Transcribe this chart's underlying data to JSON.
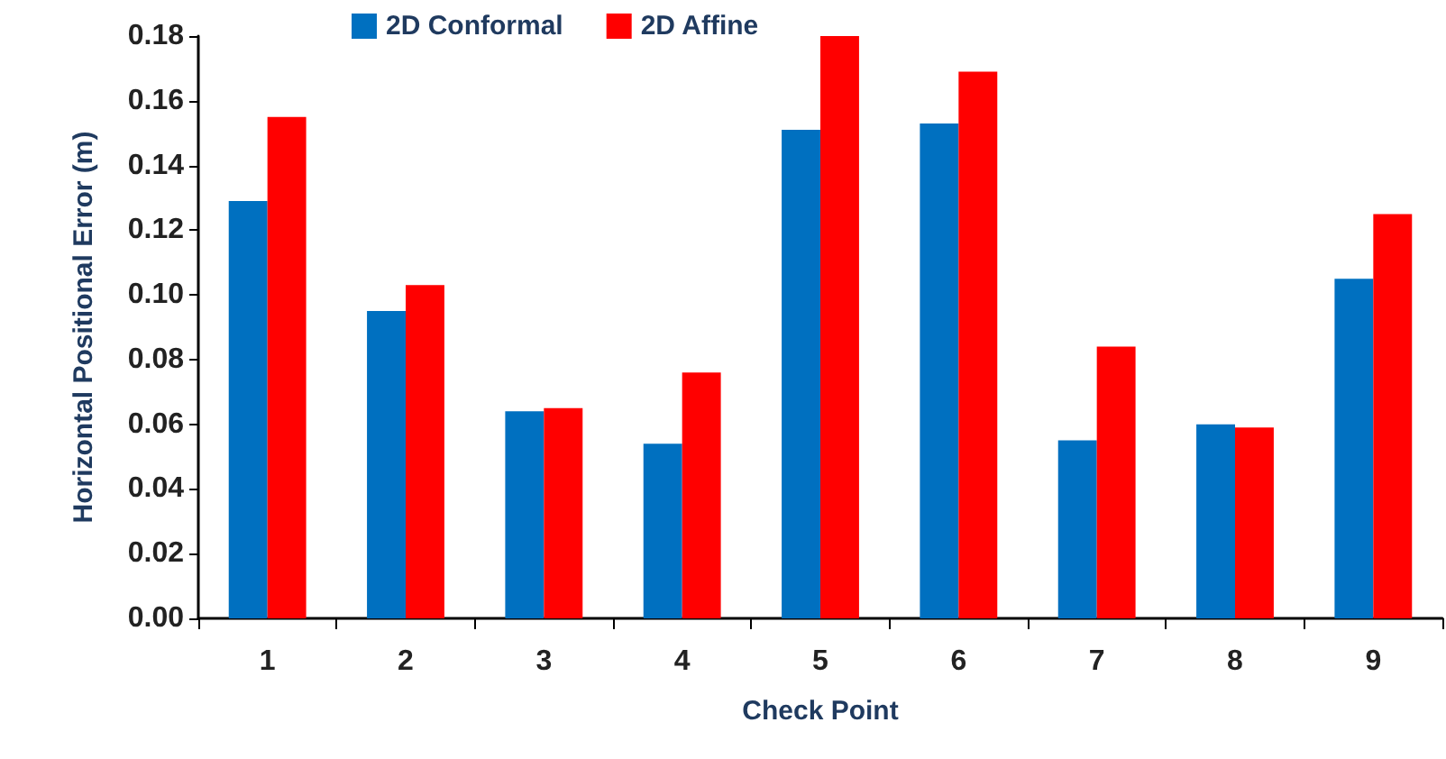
{
  "chart_data": {
    "type": "bar",
    "xlabel": "Check Point",
    "ylabel": "Horizontal Positional Error (m)",
    "categories": [
      "1",
      "2",
      "3",
      "4",
      "5",
      "6",
      "7",
      "8",
      "9"
    ],
    "series": [
      {
        "name": "2D Conformal",
        "color": "#0070c0",
        "values": [
          0.129,
          0.095,
          0.064,
          0.054,
          0.151,
          0.153,
          0.055,
          0.06,
          0.105
        ]
      },
      {
        "name": "2D Affine",
        "color": "#ff0000",
        "values": [
          0.155,
          0.103,
          0.065,
          0.076,
          0.18,
          0.169,
          0.084,
          0.059,
          0.125
        ]
      }
    ],
    "ylim": [
      0,
      0.18
    ],
    "yticks": [
      {
        "value": 0,
        "label": "0.00"
      },
      0.02,
      0.04,
      0.06,
      0.08,
      {
        "value": 0.1,
        "label": "0.10"
      },
      0.12,
      0.14,
      0.16,
      0.18
    ],
    "grid": false,
    "legend": "top"
  }
}
